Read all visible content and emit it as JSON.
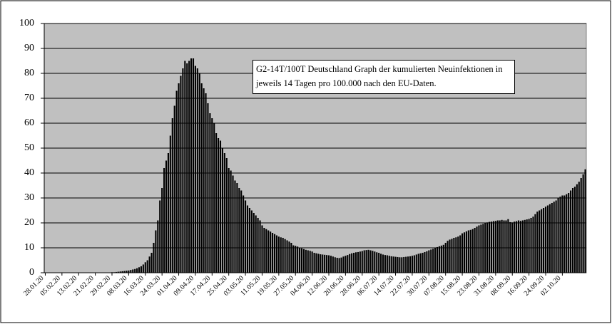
{
  "chart_data": {
    "type": "bar",
    "annotation": "G2-14T/100T  Deutschland   Graph der kumulierten Neuinfektionen in jeweils 14 Tagen pro 100.000 nach den EU-Daten.",
    "color": "#000000",
    "background": "#c0c0c0",
    "grid": true,
    "ylim": [
      0,
      100
    ],
    "yticks": [
      0,
      10,
      20,
      30,
      40,
      50,
      60,
      70,
      80,
      90,
      100
    ],
    "categories": [
      "28.01.20",
      null,
      null,
      null,
      null,
      null,
      null,
      null,
      "05.02.20",
      null,
      null,
      null,
      null,
      null,
      null,
      null,
      "13.02.20",
      null,
      null,
      null,
      null,
      null,
      null,
      null,
      "21.02.20",
      null,
      null,
      null,
      null,
      null,
      null,
      null,
      "29.02.20",
      null,
      null,
      null,
      null,
      null,
      null,
      null,
      "08.03.20",
      null,
      null,
      null,
      null,
      null,
      null,
      null,
      "16.03.20",
      null,
      null,
      null,
      null,
      null,
      null,
      null,
      "24.03.20",
      null,
      null,
      null,
      null,
      null,
      null,
      null,
      "01.04.20",
      null,
      null,
      null,
      null,
      null,
      null,
      null,
      "09.04.20",
      null,
      null,
      null,
      null,
      null,
      null,
      null,
      "17.04.20",
      null,
      null,
      null,
      null,
      null,
      null,
      null,
      "25.04.20",
      null,
      null,
      null,
      null,
      null,
      null,
      null,
      "03.05.20",
      null,
      null,
      null,
      null,
      null,
      null,
      null,
      "11.05.20",
      null,
      null,
      null,
      null,
      null,
      null,
      null,
      "19.05.20",
      null,
      null,
      null,
      null,
      null,
      null,
      null,
      "27.05.20",
      null,
      null,
      null,
      null,
      null,
      null,
      null,
      "04.06.20",
      null,
      null,
      null,
      null,
      null,
      null,
      null,
      "12.06.20",
      null,
      null,
      null,
      null,
      null,
      null,
      null,
      "20.06.20",
      null,
      null,
      null,
      null,
      null,
      null,
      null,
      "28.06.20",
      null,
      null,
      null,
      null,
      null,
      null,
      null,
      "06.07.20",
      null,
      null,
      null,
      null,
      null,
      null,
      null,
      "14.07.20",
      null,
      null,
      null,
      null,
      null,
      null,
      null,
      "22.07.20",
      null,
      null,
      null,
      null,
      null,
      null,
      null,
      "30.07.20",
      null,
      null,
      null,
      null,
      null,
      null,
      null,
      "07.08.20",
      null,
      null,
      null,
      null,
      null,
      null,
      null,
      "15.08.20",
      null,
      null,
      null,
      null,
      null,
      null,
      null,
      "23.08.20",
      null,
      null,
      null,
      null,
      null,
      null,
      null,
      "31.08.20",
      null,
      null,
      null,
      null,
      null,
      null,
      null,
      "08.09.20",
      null,
      null,
      null,
      null,
      null,
      null,
      null,
      "16.09.20",
      null,
      null,
      null,
      null,
      null,
      null,
      null,
      "24.09.20",
      null,
      null,
      null,
      null,
      null,
      null,
      null,
      "02.10.20",
      null,
      null,
      null,
      null,
      null,
      null,
      null,
      null,
      null,
      null,
      null
    ],
    "values": [
      0,
      0,
      0,
      0,
      0,
      0,
      0,
      0,
      0,
      0,
      0,
      0,
      0,
      0,
      0,
      0,
      0,
      0,
      0,
      0,
      0,
      0,
      0,
      0,
      0,
      0,
      0,
      0,
      0,
      0,
      0.1,
      0.1,
      0.2,
      0.2,
      0.3,
      0.4,
      0.5,
      0.6,
      0.7,
      0.8,
      0.9,
      1.1,
      1.3,
      1.5,
      1.8,
      2.2,
      2.6,
      3.3,
      4.2,
      5,
      6.5,
      8,
      12,
      17,
      21,
      29,
      34,
      42,
      45,
      48,
      55,
      62,
      67,
      73,
      76,
      79,
      82,
      85,
      84,
      85,
      86,
      86,
      83,
      82,
      80,
      76,
      74,
      72,
      68,
      64,
      62,
      60,
      56,
      54,
      53,
      50,
      48,
      46,
      42,
      41,
      39,
      37,
      36,
      34,
      33,
      31,
      29,
      27,
      26,
      25,
      24,
      23,
      22,
      21,
      19,
      18,
      17.5,
      17,
      16.5,
      16,
      15.5,
      15,
      14.5,
      14.2,
      14,
      13.5,
      13,
      12.5,
      12,
      11,
      10.8,
      10.5,
      10,
      9.8,
      9.5,
      9.2,
      9,
      8.8,
      8.5,
      8,
      7.8,
      7.6,
      7.4,
      7.3,
      7.2,
      7.1,
      7,
      6.8,
      6.5,
      6.2,
      6,
      5.9,
      6.1,
      6.5,
      6.8,
      7.1,
      7.5,
      7.8,
      8,
      8.2,
      8.3,
      8.5,
      8.7,
      9,
      9.1,
      9.2,
      9,
      8.8,
      8.5,
      8.2,
      8,
      7.6,
      7.3,
      7.1,
      7,
      6.8,
      6.6,
      6.5,
      6.4,
      6.3,
      6.2,
      6.2,
      6.3,
      6.4,
      6.5,
      6.6,
      6.8,
      7,
      7.3,
      7.6,
      7.8,
      8,
      8.3,
      8.6,
      9,
      9.3,
      9.6,
      10,
      10.3,
      10.6,
      10.9,
      11.2,
      12,
      12.8,
      13.3,
      13.6,
      14,
      14.2,
      14.5,
      15,
      15.8,
      16.2,
      16.6,
      17,
      17.2,
      17.5,
      18,
      18.5,
      19,
      19.3,
      19.6,
      20,
      20.2,
      20.4,
      20.5,
      20.7,
      20.8,
      21,
      21,
      21.2,
      21,
      21,
      21.5,
      20.3,
      20.2,
      20.5,
      20.7,
      21,
      20.8,
      21,
      21.2,
      21.4,
      21.6,
      22,
      22.5,
      23.5,
      24.5,
      25,
      25.5,
      26,
      26.5,
      27,
      27.5,
      28,
      28.5,
      29,
      30,
      30.5,
      31,
      31,
      31.5,
      32,
      33,
      34,
      34.5,
      35.5,
      36.5,
      38,
      39.5,
      41.5
    ]
  }
}
